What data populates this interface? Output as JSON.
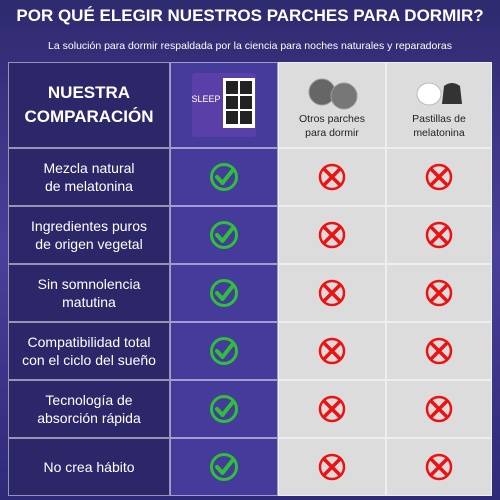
{
  "header": {
    "title": "POR QUÉ ELEGIR NUESTROS PARCHES PARA DORMIR?",
    "subtitle": "La solución para dormir respaldada por la ciencia para noches naturales y reparadoras"
  },
  "table": {
    "header_label": [
      "NUESTRA",
      "COMPARACIÓN"
    ],
    "product_label": "SLEEP",
    "columns": [
      [
        "Otros parches",
        "para dormir"
      ],
      [
        "Pastillas de",
        "melatonina"
      ]
    ],
    "rows": [
      {
        "label": [
          "Mezcla natural",
          "de melatonina"
        ],
        "marks": [
          true,
          false,
          false
        ]
      },
      {
        "label": [
          "Ingredientes puros",
          "de origen vegetal"
        ],
        "marks": [
          true,
          false,
          false
        ]
      },
      {
        "label": [
          "Sin somnolencia",
          "matutina"
        ],
        "marks": [
          true,
          false,
          false
        ]
      },
      {
        "label": [
          "Compatibilidad total",
          "con el ciclo del sueño"
        ],
        "marks": [
          true,
          false,
          false
        ]
      },
      {
        "label": [
          "Tecnología de",
          "absorción rápida"
        ],
        "marks": [
          true,
          false,
          false
        ]
      },
      {
        "label": [
          "No crea hábito"
        ],
        "marks": [
          true,
          false,
          false
        ]
      }
    ]
  }
}
